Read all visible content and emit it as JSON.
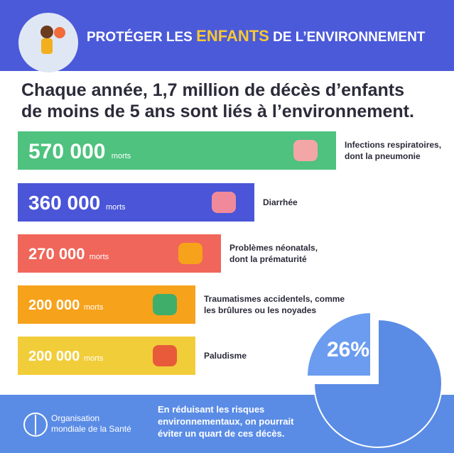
{
  "header": {
    "title_start": "PROTÉGER LES",
    "title_highlight": "ENFANTS",
    "title_end": "DE L’ENVIRONNEMENT"
  },
  "headline": [
    "Chaque année, 1,7 million de décès d’enfants",
    "de moins de 5 ans sont liés à l’environnement."
  ],
  "rows": [
    {
      "value": "570 000",
      "unit": "morts",
      "label": [
        "Infections respiratoires,",
        "dont la pneumonie"
      ]
    },
    {
      "value": "360 000",
      "unit": "morts",
      "label": [
        "Diarrhée"
      ]
    },
    {
      "value": "270 000",
      "unit": "morts",
      "label": [
        "Problèmes néonatals,",
        "dont la prématurité"
      ]
    },
    {
      "value": "200 000",
      "unit": "morts",
      "label": [
        "Traumatismes accidentels, comme",
        "les brûlures ou les noyades"
      ]
    },
    {
      "value": "200 000",
      "unit": "morts",
      "label": [
        "Paludisme"
      ]
    }
  ],
  "pie_label": "26%",
  "footer": {
    "organization": [
      "Organisation",
      "mondiale de la Santé"
    ],
    "note": [
      "En réduisant les risques",
      "environnementaux, on pourrait",
      "éviter un quart de ces décès."
    ]
  }
}
